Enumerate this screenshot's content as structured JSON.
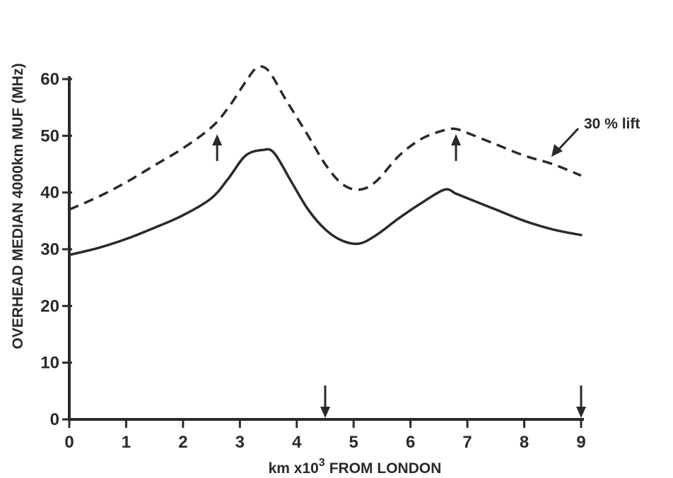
{
  "chart_data": {
    "type": "line",
    "xlabel_prefix": "km  x10",
    "xlabel_exponent": "3",
    "xlabel_suffix": "FROM  LONDON",
    "ylabel": "OVERHEAD MEDIAN 4000km  MUF (MHz)",
    "xlim": [
      0,
      9
    ],
    "ylim": [
      0,
      60
    ],
    "x_ticks": [
      "0",
      "1",
      "2",
      "3",
      "4",
      "5",
      "6",
      "7",
      "8",
      "9"
    ],
    "y_ticks": [
      "0",
      "10",
      "20",
      "30",
      "40",
      "50",
      "60"
    ],
    "grid": false,
    "series": [
      {
        "style": "solid",
        "x": [
          0,
          0.5,
          1.0,
          1.5,
          2.0,
          2.5,
          2.8,
          3.1,
          3.4,
          3.6,
          3.9,
          4.2,
          4.5,
          4.8,
          5.1,
          5.4,
          5.8,
          6.2,
          6.6,
          6.8,
          7.0,
          7.5,
          8.0,
          8.5,
          9.0
        ],
        "y": [
          29,
          30.2,
          31.8,
          33.8,
          36.0,
          39.0,
          42.5,
          46.5,
          47.5,
          47.0,
          42.0,
          37.0,
          33.5,
          31.5,
          31.0,
          32.5,
          35.5,
          38.2,
          40.5,
          39.8,
          39.0,
          37.0,
          35.0,
          33.5,
          32.5
        ]
      },
      {
        "name": "30 % lift",
        "style": "dashed",
        "x": [
          0,
          0.5,
          1.0,
          1.5,
          2.0,
          2.5,
          2.8,
          3.1,
          3.3,
          3.5,
          3.8,
          4.2,
          4.5,
          4.8,
          5.1,
          5.4,
          5.8,
          6.2,
          6.6,
          6.8,
          7.0,
          7.5,
          8.0,
          8.5,
          9.0
        ],
        "y": [
          37,
          39.2,
          41.8,
          44.8,
          47.8,
          51.5,
          55.0,
          59.5,
          62.0,
          61.5,
          56.5,
          50.0,
          45.0,
          41.5,
          40.5,
          42.0,
          46.5,
          49.5,
          51.0,
          51.2,
          50.5,
          48.5,
          46.5,
          45.0,
          43.0
        ]
      }
    ],
    "annotations": [
      {
        "text": "30 % lift",
        "points_to": "dashed"
      }
    ],
    "up_arrows_at_x": [
      2.6,
      6.8
    ],
    "down_arrows_at_x": [
      4.5,
      9.0
    ]
  }
}
